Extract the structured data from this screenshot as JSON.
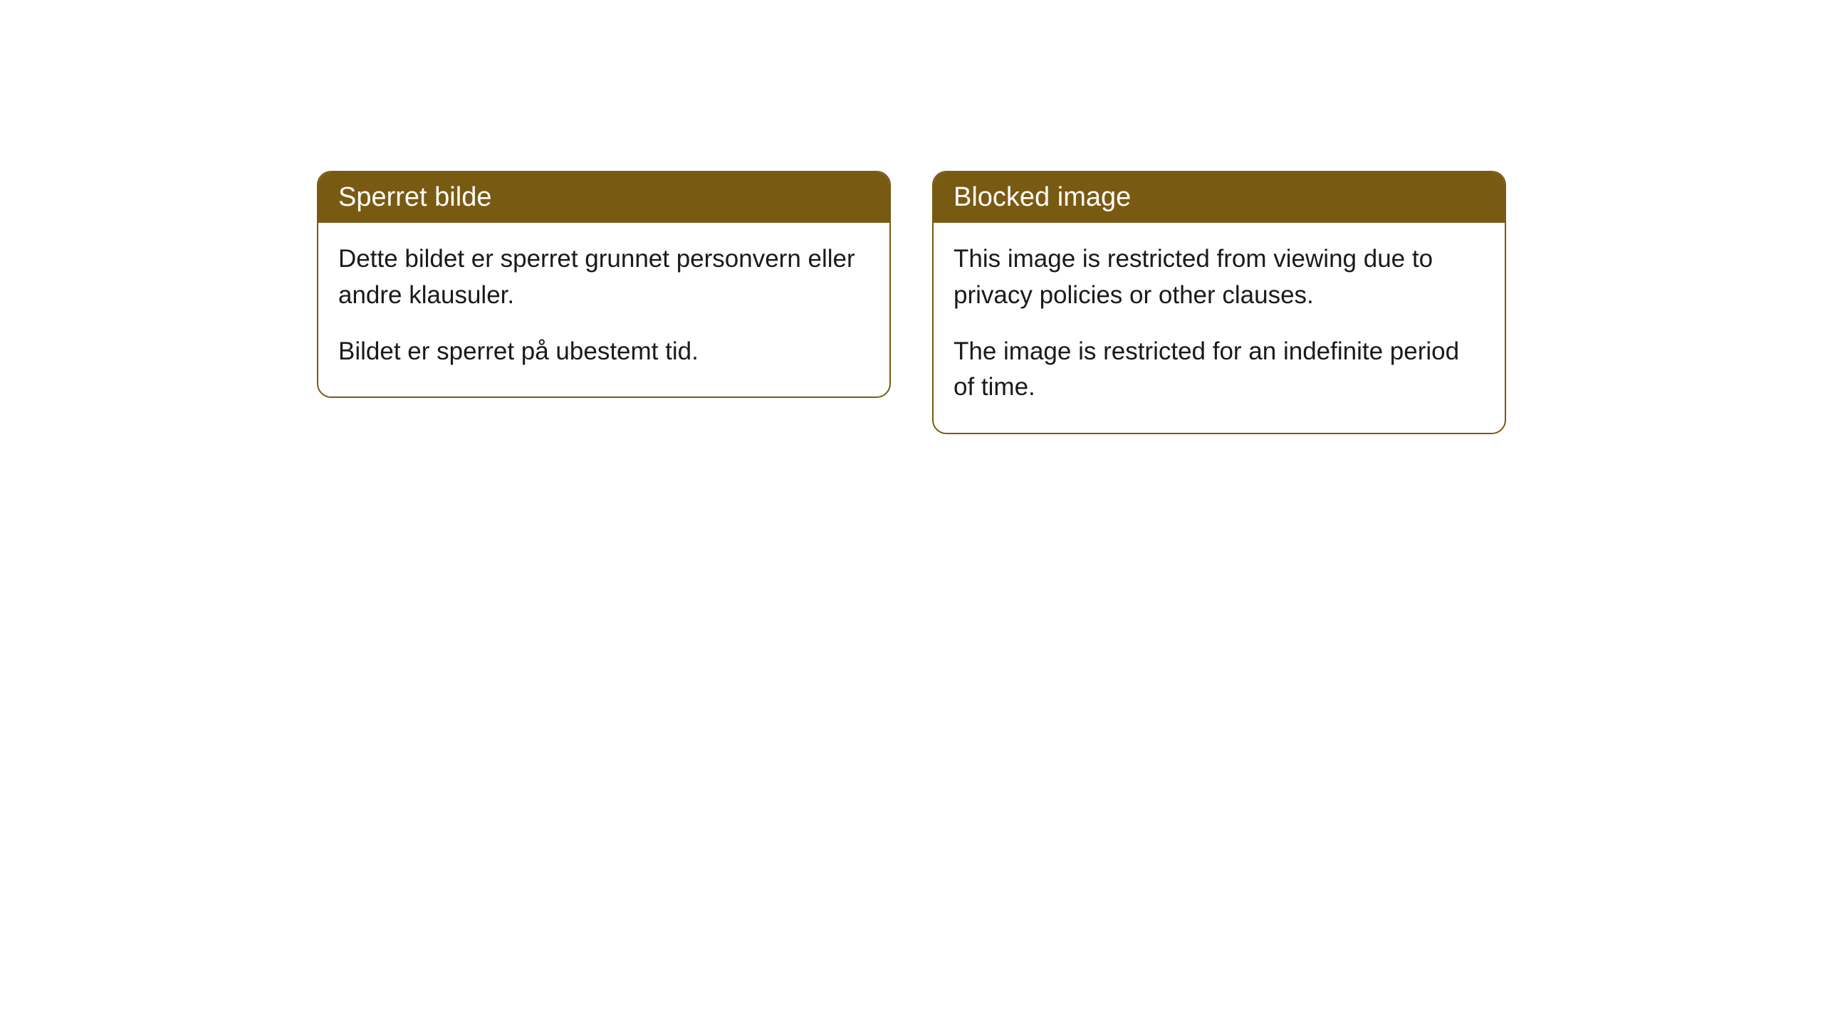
{
  "cards": [
    {
      "title": "Sperret bilde",
      "paragraph1": "Dette bildet er sperret grunnet personvern eller andre klausuler.",
      "paragraph2": "Bildet er sperret på ubestemt tid."
    },
    {
      "title": "Blocked image",
      "paragraph1": "This image is restricted from viewing due to privacy policies or other clauses.",
      "paragraph2": "The image is restricted for an indefinite period of time."
    }
  ],
  "styling": {
    "header_background_color": "#795a12",
    "header_text_color": "#ffffff",
    "border_color": "#795a12",
    "body_text_color": "#1a1a1a",
    "card_background_color": "#ffffff",
    "page_background_color": "#ffffff",
    "border_radius": 20,
    "header_fontsize": 38,
    "body_fontsize": 35
  }
}
